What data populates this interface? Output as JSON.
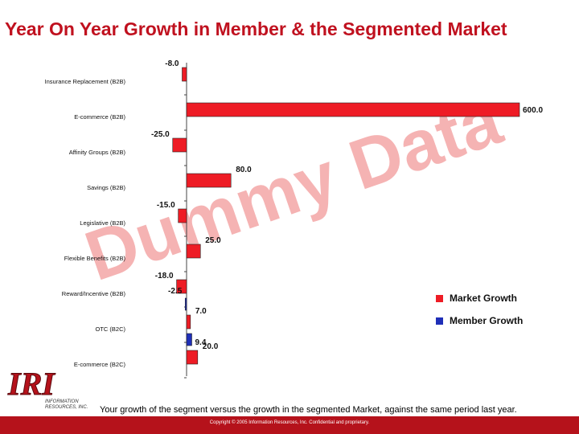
{
  "title": "Year On Year Growth in Member & the Segmented Market",
  "watermark": "Dummy Data",
  "colors": {
    "market": "#ee1c25",
    "member": "#1f2fb8",
    "title": "#c0111f",
    "footer": "#b5121b",
    "watermark": "#f5b3b3"
  },
  "chart_data": {
    "type": "bar",
    "orientation": "horizontal",
    "categories": [
      "Insurance Replacement (B2B)",
      "E-commerce (B2B)",
      "Affinity Groups (B2B)",
      "Savings (B2B)",
      "Legislative (B2B)",
      "Flexible Benefits (B2B)",
      "Reward/Incentive (B2B)",
      "OTC (B2C)",
      "E-commerce (B2C)"
    ],
    "series": [
      {
        "name": "Market Growth",
        "values": [
          -8.0,
          600.0,
          -25.0,
          80.0,
          -15.0,
          25.0,
          -18.0,
          7.0,
          20.0
        ]
      },
      {
        "name": "Member Growth",
        "values": [
          null,
          null,
          null,
          null,
          null,
          null,
          -2.5,
          9.4,
          null
        ]
      }
    ],
    "value_labels": {
      "Market Growth": [
        "-8.0",
        "600.0",
        "-25.0",
        "80.0",
        "-15.0",
        "25.0",
        "-18.0",
        "7.0",
        "20.0"
      ],
      "Member Growth": [
        null,
        null,
        null,
        null,
        null,
        null,
        "-2.5",
        "9.4",
        null
      ]
    },
    "legend_position": "right",
    "grid": false
  },
  "logo": {
    "text": "IRI",
    "subtitle_1": "INFORMATION",
    "subtitle_2": "RESOURCES, INC."
  },
  "footnote": "Your growth of the segment versus the growth in the segmented Market, against the same period last year.",
  "footer": "Copyright © 2005 Information Resources, Inc. Confidential and proprietary."
}
